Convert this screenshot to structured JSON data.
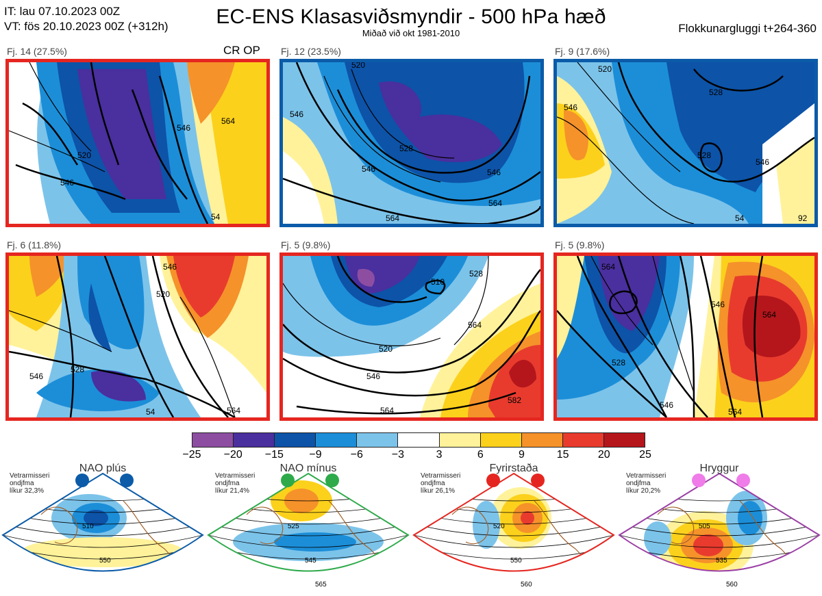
{
  "header": {
    "it_line": "IT: lau 07.10.2023 00Z",
    "vt_line": "VT: fös 20.10.2023 00Z  (+312h)",
    "title": "EC-ENS Klasasviðsmyndir - 500 hPa hæð",
    "subtitle": "Miðað við okt 1981-2010",
    "window": "Flokkunargluggi t+264-360"
  },
  "clusters": [
    {
      "label": "Fj. 14 (27.5%)",
      "border": "#e52620",
      "tag": "CR OP",
      "contours": [
        "520",
        "546",
        "546",
        "564",
        "54"
      ]
    },
    {
      "label": "Fj. 12 (23.5%)",
      "border": "#0b5ba8",
      "contours": [
        "520",
        "528",
        "546",
        "546",
        "564",
        "564",
        "546"
      ]
    },
    {
      "label": "Fj. 9 (17.6%)",
      "border": "#0b5ba8",
      "contours": [
        "520",
        "528",
        "528",
        "546",
        "546",
        "54",
        "92"
      ]
    },
    {
      "label": "Fj. 6 (11.8%)",
      "border": "#e52620",
      "contours": [
        "520",
        "528",
        "546",
        "546",
        "564",
        "54"
      ]
    },
    {
      "label": "Fj. 5 (9.8%)",
      "border": "#e52620",
      "contours": [
        "510",
        "528",
        "520",
        "546",
        "564",
        "564",
        "582"
      ]
    },
    {
      "label": "Fj. 5 (9.8%)",
      "border": "#e52620",
      "contours": [
        "528",
        "546",
        "564",
        "546",
        "564",
        "564"
      ]
    }
  ],
  "colorbar": {
    "ticks": [
      "−25",
      "−20",
      "−15",
      "−9",
      "−6",
      "−3",
      "3",
      "6",
      "9",
      "15",
      "20",
      "25"
    ],
    "colors": [
      "#8d4ea2",
      "#4a2f9e",
      "#0d53a8",
      "#1c8ed8",
      "#7cc3ea",
      "#ffffff",
      "#fff29a",
      "#fcd11c",
      "#f5922a",
      "#e83b2e",
      "#b4161c"
    ]
  },
  "regimes": [
    {
      "name": "NAO plús",
      "note": [
        "Vetrarmisseri",
        "ondjfma",
        "líkur 32,3%"
      ],
      "color": "#0b5ba8",
      "labels": [
        "510",
        "550"
      ]
    },
    {
      "name": "NAO mínus",
      "note": [
        "Vetrarmisseri",
        "ondjfma",
        "líkur 21,4%"
      ],
      "color": "#2eaa4a",
      "labels": [
        "525",
        "545",
        "565"
      ]
    },
    {
      "name": "Fyrirstaða",
      "note": [
        "Vetrarmisseri",
        "ondjfma",
        "líkur 26,1%"
      ],
      "color": "#e52620",
      "labels": [
        "520",
        "550",
        "560"
      ]
    },
    {
      "name": "Hryggur",
      "note": [
        "Vetrarmisseri",
        "ondjfma",
        "líkur 20,2%"
      ],
      "color": "#9b3fa6",
      "dot_color": "#ef7ce8",
      "labels": [
        "505",
        "535",
        "560"
      ]
    }
  ]
}
